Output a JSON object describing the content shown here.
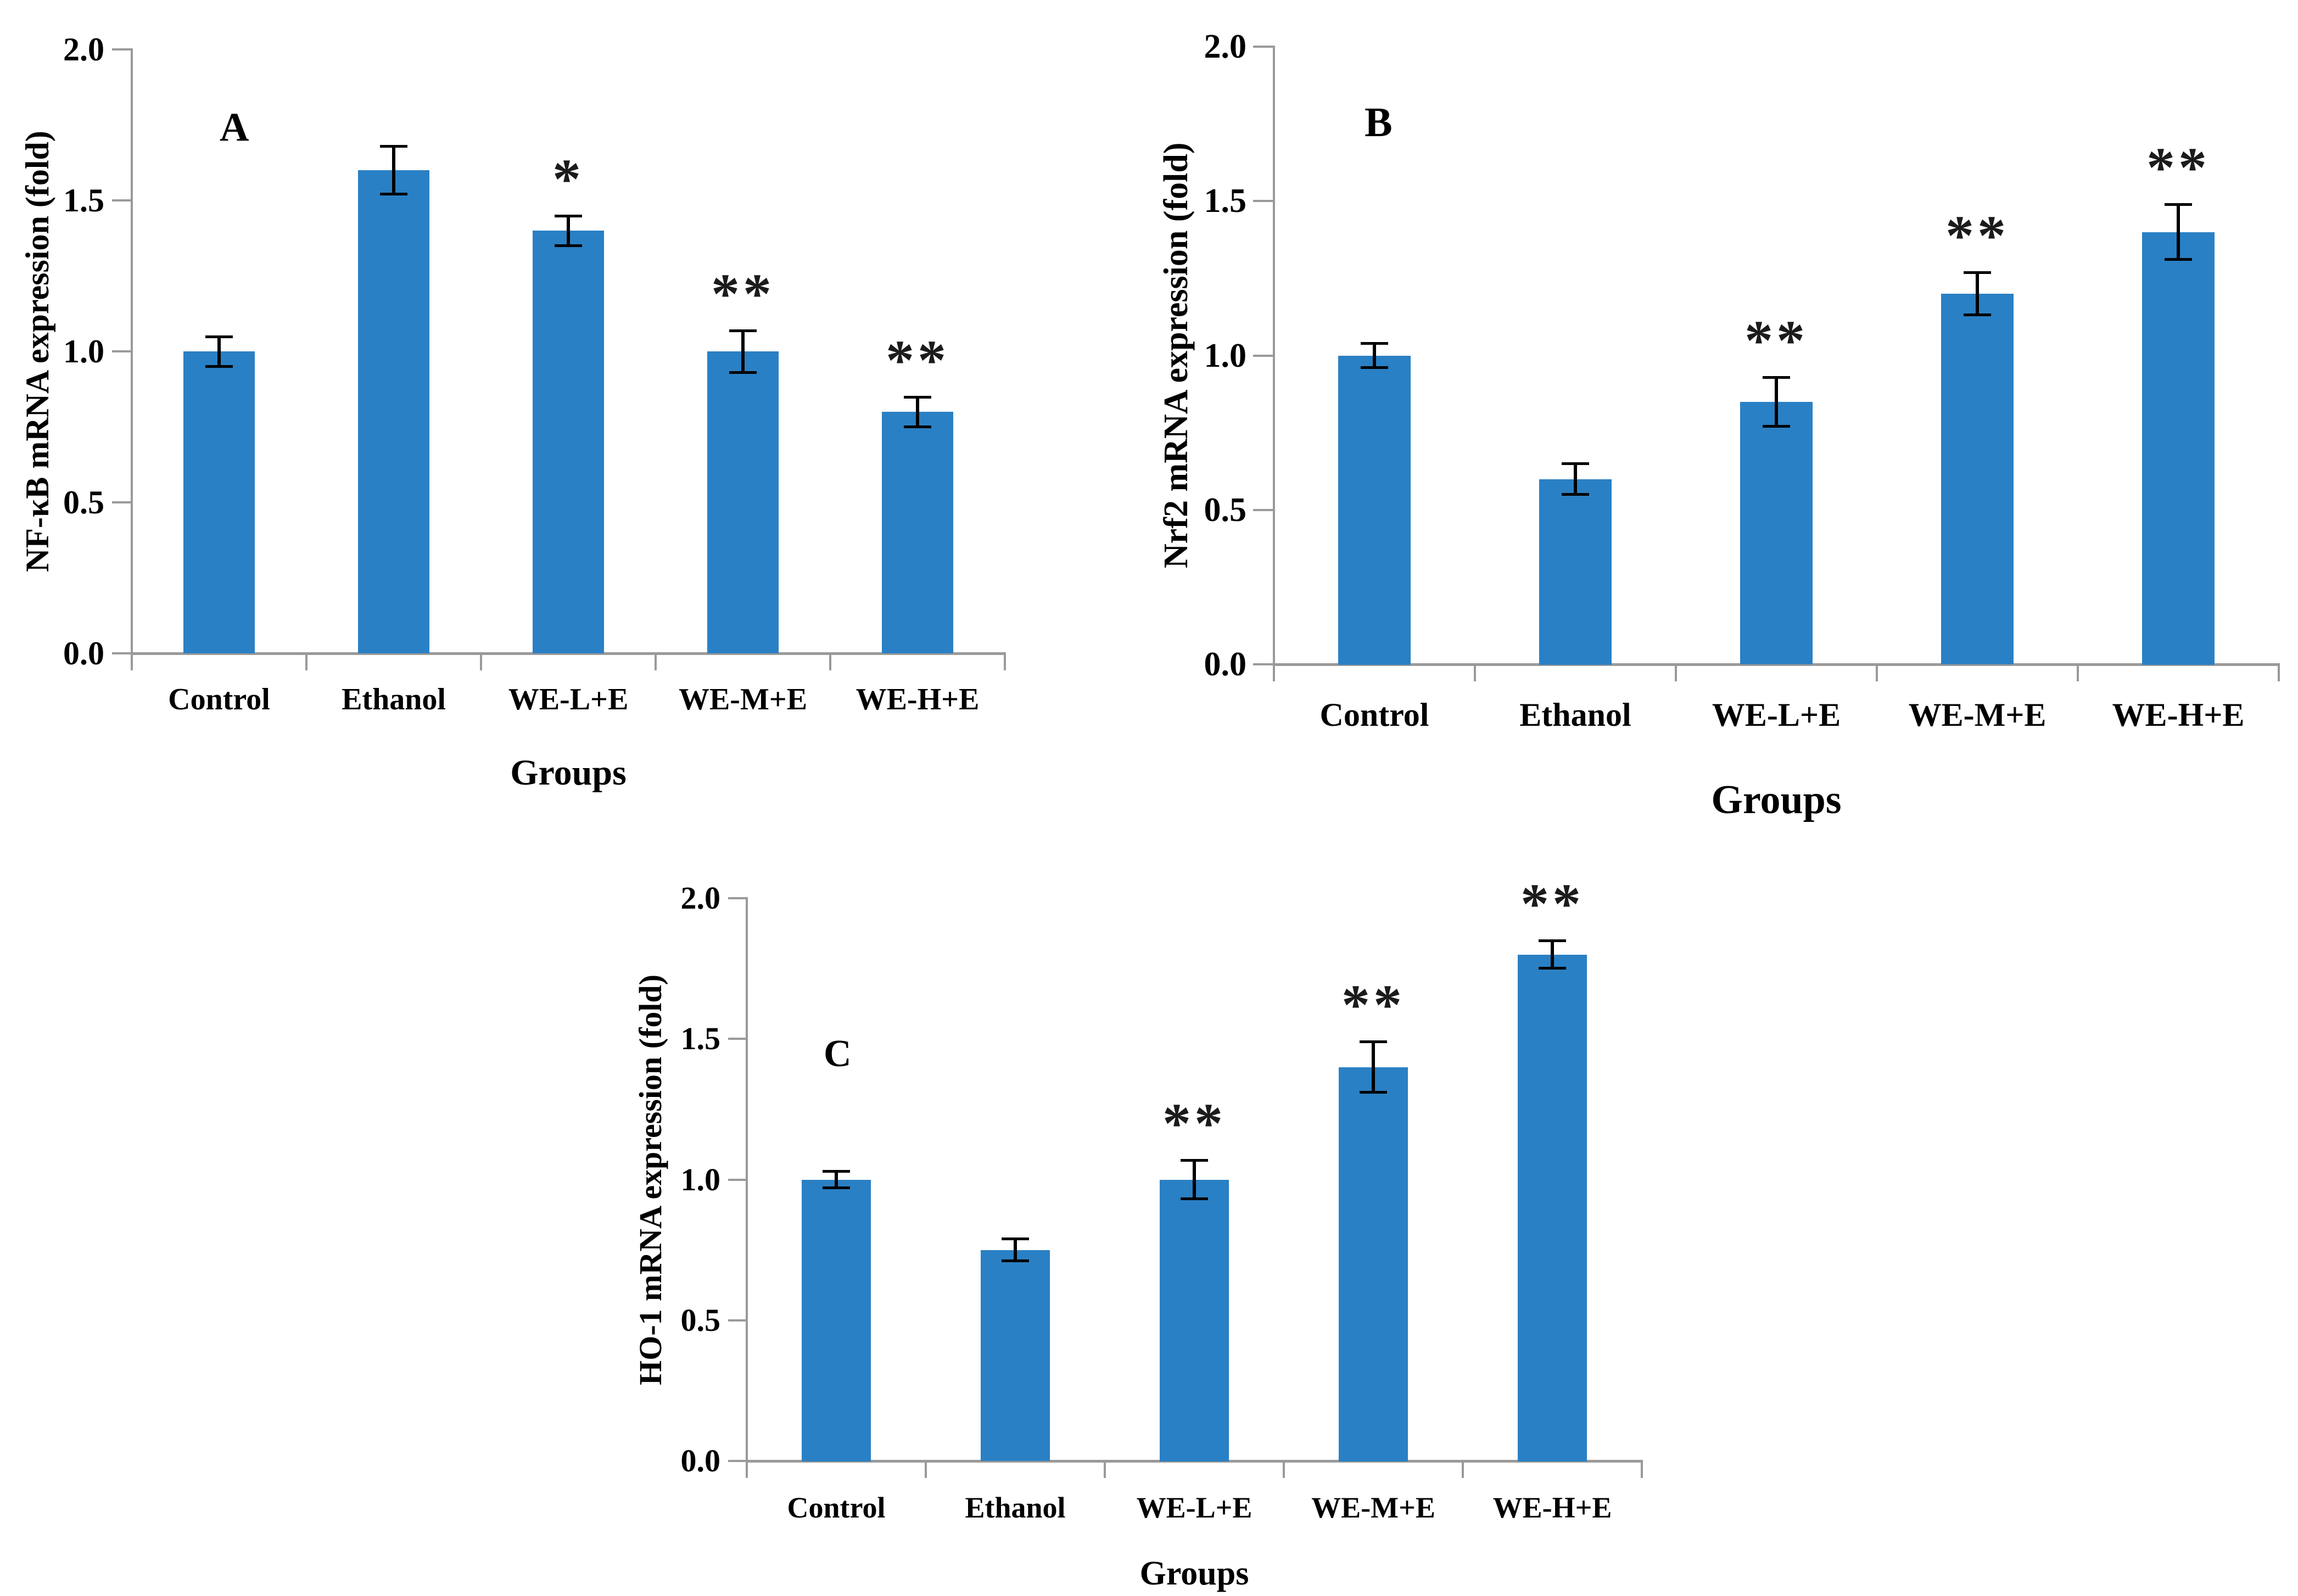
{
  "figure": {
    "background_color": "#ffffff",
    "bar_color": "#2a80c4",
    "axis_color": "#9a9a9a",
    "error_bar_color": "#000000",
    "text_color": "#000000",
    "significance_color": "#1b1b1b"
  },
  "chart_data": [
    {
      "id": "A",
      "type": "bar",
      "panel_label": "A",
      "ylabel": "NF-κB mRNA expression (fold)",
      "xlabel": "Groups",
      "categories": [
        "Control",
        "Ethanol",
        "WE-L+E",
        "WE-M+E",
        "WE-H+E"
      ],
      "values": [
        1.0,
        1.6,
        1.4,
        1.0,
        0.8
      ],
      "errors": [
        0.05,
        0.08,
        0.05,
        0.07,
        0.05
      ],
      "significance": [
        "",
        "",
        "*",
        "**",
        "**"
      ],
      "ylim": [
        0.0,
        2.0
      ],
      "yticks": [
        0.0,
        0.5,
        1.0,
        1.5,
        2.0
      ],
      "ytick_labels": [
        "0.0",
        "0.5",
        "1.0",
        "1.5",
        "2.0"
      ],
      "grid": "off",
      "legend": "none"
    },
    {
      "id": "B",
      "type": "bar",
      "panel_label": "B",
      "ylabel": "Nrf2 mRNA expression (fold)",
      "xlabel": "Groups",
      "categories": [
        "Control",
        "Ethanol",
        "WE-L+E",
        "WE-M+E",
        "WE-H+E"
      ],
      "values": [
        1.0,
        0.6,
        0.85,
        1.2,
        1.4
      ],
      "errors": [
        0.04,
        0.05,
        0.08,
        0.07,
        0.09
      ],
      "significance": [
        "",
        "",
        "**",
        "**",
        "**"
      ],
      "ylim": [
        0.0,
        2.0
      ],
      "yticks": [
        0.0,
        0.5,
        1.0,
        1.5,
        2.0
      ],
      "ytick_labels": [
        "0.0",
        "0.5",
        "1.0",
        "1.5",
        "2.0"
      ],
      "grid": "off",
      "legend": "none"
    },
    {
      "id": "C",
      "type": "bar",
      "panel_label": "C",
      "ylabel": "HO-1 mRNA expression (fold)",
      "xlabel": "Groups",
      "categories": [
        "Control",
        "Ethanol",
        "WE-L+E",
        "WE-M+E",
        "WE-H+E"
      ],
      "values": [
        1.0,
        0.75,
        1.0,
        1.4,
        1.8
      ],
      "errors": [
        0.03,
        0.04,
        0.07,
        0.09,
        0.05
      ],
      "significance": [
        "",
        "",
        "**",
        "**",
        "**"
      ],
      "ylim": [
        0.0,
        2.0
      ],
      "yticks": [
        0.0,
        0.5,
        1.0,
        1.5,
        2.0
      ],
      "ytick_labels": [
        "0.0",
        "0.5",
        "1.0",
        "1.5",
        "2.0"
      ],
      "grid": "off",
      "legend": "none"
    }
  ]
}
